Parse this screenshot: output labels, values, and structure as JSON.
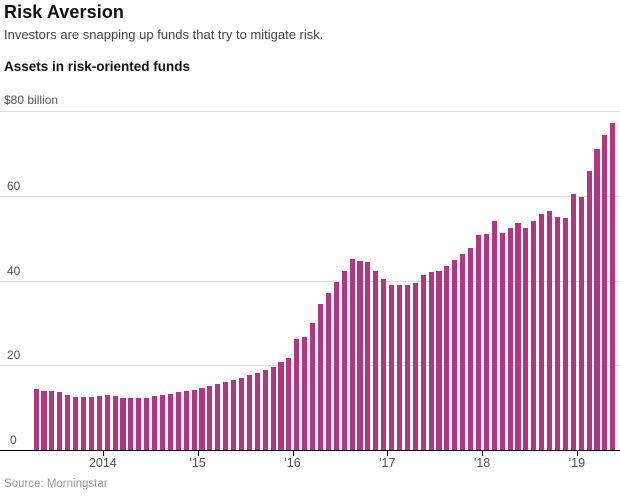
{
  "header": {
    "title": "Risk Aversion",
    "subtitle": "Investors are snapping up funds that try to mitigate risk."
  },
  "chart": {
    "label": "Assets in risk-oriented funds",
    "y_top_label": "$80 billion",
    "source": "Source: Morningstar"
  },
  "colors": {
    "bar": "#b43580",
    "grid": "#dddddd",
    "axis": "#000000",
    "muted_text": "#555555"
  },
  "chart_data": {
    "type": "bar",
    "title": "Assets in risk-oriented funds",
    "ylabel": "$ billion",
    "ylim": [
      0,
      80
    ],
    "y_ticks": [
      0,
      20,
      40,
      60
    ],
    "y_axis_top_label": "$80 billion",
    "grid": true,
    "source": "Source: Morningstar",
    "x_tick_labels": [
      "2014",
      "'15",
      "'16",
      "'17",
      "'18",
      "'19"
    ],
    "x_tick_month_indices": [
      9,
      21,
      33,
      45,
      57,
      69
    ],
    "x": [
      "Apr 2013",
      "May 2013",
      "Jun 2013",
      "Jul 2013",
      "Aug 2013",
      "Sep 2013",
      "Oct 2013",
      "Nov 2013",
      "Dec 2013",
      "Jan 2014",
      "Feb 2014",
      "Mar 2014",
      "Apr 2014",
      "May 2014",
      "Jun 2014",
      "Jul 2014",
      "Aug 2014",
      "Sep 2014",
      "Oct 2014",
      "Nov 2014",
      "Dec 2014",
      "Jan 2015",
      "Feb 2015",
      "Mar 2015",
      "Apr 2015",
      "May 2015",
      "Jun 2015",
      "Jul 2015",
      "Aug 2015",
      "Sep 2015",
      "Oct 2015",
      "Nov 2015",
      "Dec 2015",
      "Jan 2016",
      "Feb 2016",
      "Mar 2016",
      "Apr 2016",
      "May 2016",
      "Jun 2016",
      "Jul 2016",
      "Aug 2016",
      "Sep 2016",
      "Oct 2016",
      "Nov 2016",
      "Dec 2016",
      "Jan 2017",
      "Feb 2017",
      "Mar 2017",
      "Apr 2017",
      "May 2017",
      "Jun 2017",
      "Jul 2017",
      "Aug 2017",
      "Sep 2017",
      "Oct 2017",
      "Nov 2017",
      "Dec 2017",
      "Jan 2018",
      "Feb 2018",
      "Mar 2018",
      "Apr 2018",
      "May 2018",
      "Jun 2018",
      "Jul 2018",
      "Aug 2018",
      "Sep 2018",
      "Oct 2018",
      "Nov 2018",
      "Dec 2018",
      "Jan 2019",
      "Feb 2019",
      "Mar 2019",
      "Apr 2019",
      "May 2019"
    ],
    "values": [
      14.4,
      13.9,
      14.0,
      13.7,
      13.0,
      12.5,
      12.6,
      12.6,
      12.8,
      12.9,
      12.8,
      12.4,
      12.2,
      12.3,
      12.4,
      12.7,
      12.9,
      13.3,
      13.7,
      14.0,
      14.3,
      14.7,
      15.1,
      15.6,
      16.0,
      16.5,
      17.1,
      17.7,
      18.3,
      19.0,
      19.7,
      20.9,
      21.8,
      26.3,
      26.8,
      30.1,
      34.4,
      37.1,
      39.7,
      42.4,
      45.1,
      44.6,
      44.4,
      42.2,
      40.5,
      38.9,
      39.1,
      38.9,
      39.5,
      41.4,
      42.1,
      42.4,
      43.6,
      44.9,
      46.3,
      47.7,
      50.9,
      51.1,
      54.2,
      51.4,
      52.4,
      53.7,
      52.4,
      54.1,
      55.7,
      56.5,
      55.1,
      54.8,
      60.5,
      59.7,
      66.0,
      71.2,
      74.5,
      77.3
    ]
  }
}
